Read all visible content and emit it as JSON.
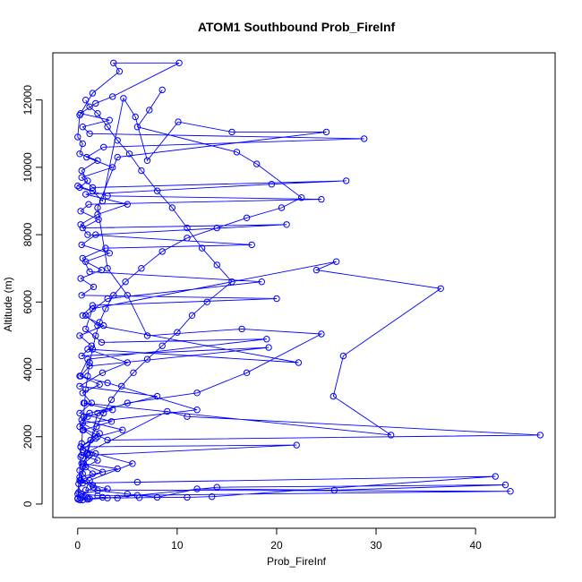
{
  "chart_data": {
    "type": "line",
    "title": "ATOM1 Southbound Prob_FireInf",
    "xlabel": "Prob_FireInf",
    "ylabel": "Altitude (m)",
    "xlim": [
      -2.5,
      48.0
    ],
    "ylim": [
      -400,
      13400
    ],
    "x_ticks": [
      0,
      10,
      20,
      30,
      40
    ],
    "y_ticks": [
      0,
      2000,
      4000,
      6000,
      8000,
      10000,
      12000
    ],
    "grid": false,
    "legend": "none",
    "point_style": "open-circle",
    "series_color": "#0000ff",
    "series": [
      {
        "points": [
          [
            0.0,
            150
          ],
          [
            0.3,
            180
          ],
          [
            1.2,
            160
          ],
          [
            2.5,
            200
          ],
          [
            4.0,
            180
          ],
          [
            6.2,
            190
          ],
          [
            11.0,
            200
          ],
          [
            13.5,
            220
          ],
          [
            42.0,
            820
          ],
          [
            6.0,
            650
          ],
          [
            0.5,
            620
          ],
          [
            1.5,
            900
          ],
          [
            0.8,
            1100
          ],
          [
            2.0,
            1300
          ],
          [
            0.4,
            1450
          ],
          [
            9.0,
            2750
          ],
          [
            11.0,
            2600
          ],
          [
            46.5,
            2050
          ],
          [
            3.0,
            1900
          ],
          [
            0.2,
            2300
          ],
          [
            1.0,
            2600
          ],
          [
            3.5,
            2800
          ],
          [
            0.6,
            3000
          ],
          [
            31.5,
            2050
          ],
          [
            25.7,
            3200
          ],
          [
            26.7,
            4400
          ],
          [
            36.5,
            6400
          ],
          [
            24.0,
            6950
          ],
          [
            26.0,
            7200
          ],
          [
            1.5,
            5800
          ],
          [
            0.8,
            5200
          ],
          [
            2.4,
            4800
          ],
          [
            19.0,
            4900
          ],
          [
            1.0,
            4300
          ],
          [
            0.2,
            3800
          ],
          [
            3.0,
            3600
          ],
          [
            12.0,
            2800
          ],
          [
            0.5,
            2400
          ],
          [
            2.2,
            2100
          ],
          [
            0.3,
            1700
          ],
          [
            1.8,
            1500
          ],
          [
            0.6,
            1200
          ],
          [
            4.0,
            1050
          ],
          [
            0.2,
            800
          ],
          [
            1.5,
            560
          ],
          [
            3.0,
            450
          ],
          [
            0.4,
            300
          ],
          [
            2.0,
            250
          ],
          [
            43.5,
            380
          ],
          [
            0.8,
            420
          ],
          [
            1.2,
            700
          ],
          [
            5.5,
            1200
          ],
          [
            0.5,
            1600
          ],
          [
            2.0,
            2000
          ],
          [
            4.5,
            2200
          ],
          [
            0.4,
            2500
          ],
          [
            1.2,
            2700
          ],
          [
            8.0,
            3200
          ],
          [
            0.2,
            3500
          ],
          [
            2.5,
            3900
          ],
          [
            5.0,
            4200
          ],
          [
            1.0,
            4600
          ],
          [
            22.2,
            4200
          ],
          [
            2.0,
            5300
          ],
          [
            0.8,
            5600
          ],
          [
            3.0,
            6100
          ],
          [
            18.5,
            6600
          ],
          [
            1.2,
            6900
          ],
          [
            0.5,
            7300
          ],
          [
            2.8,
            7600
          ],
          [
            17.5,
            7700
          ],
          [
            1.0,
            8000
          ],
          [
            0.3,
            8300
          ],
          [
            2.0,
            8600
          ],
          [
            5.0,
            8900
          ],
          [
            0.8,
            9200
          ],
          [
            19.5,
            9500
          ],
          [
            27.0,
            9600
          ],
          [
            1.5,
            9400
          ],
          [
            0.4,
            9700
          ],
          [
            3.5,
            10000
          ],
          [
            0.9,
            10300
          ],
          [
            2.6,
            10600
          ],
          [
            28.8,
            10850
          ],
          [
            1.2,
            11000
          ],
          [
            0.5,
            11200
          ],
          [
            3.2,
            11400
          ],
          [
            0.3,
            11600
          ],
          [
            1.8,
            11900
          ],
          [
            3.5,
            12100
          ],
          [
            10.2,
            13100
          ],
          [
            3.6,
            13100
          ],
          [
            4.2,
            12850
          ],
          [
            1.5,
            12200
          ],
          [
            0.2,
            11550
          ],
          [
            0.0,
            10900
          ],
          [
            0.5,
            10700
          ],
          [
            0.2,
            10400
          ],
          [
            2.0,
            10200
          ],
          [
            0.4,
            9900
          ],
          [
            1.0,
            9600
          ],
          [
            0.2,
            9400
          ],
          [
            3.0,
            9150
          ],
          [
            24.5,
            9050
          ],
          [
            1.1,
            8900
          ],
          [
            0.3,
            8700
          ],
          [
            2.1,
            8450
          ],
          [
            0.5,
            8200
          ],
          [
            21.0,
            8300
          ],
          [
            1.8,
            8000
          ],
          [
            0.4,
            7700
          ],
          [
            3.2,
            7450
          ],
          [
            0.8,
            7200
          ],
          [
            2.4,
            6950
          ],
          [
            0.3,
            6700
          ],
          [
            1.6,
            6450
          ],
          [
            0.4,
            6200
          ],
          [
            20.0,
            6100
          ],
          [
            1.5,
            5900
          ],
          [
            0.5,
            5600
          ],
          [
            2.6,
            5300
          ],
          [
            0.2,
            5000
          ],
          [
            1.4,
            4700
          ],
          [
            0.4,
            4400
          ],
          [
            19.2,
            4650
          ],
          [
            1.2,
            4100
          ],
          [
            0.3,
            3800
          ],
          [
            2.2,
            3550
          ],
          [
            0.5,
            3300
          ],
          [
            1.4,
            3000
          ],
          [
            0.2,
            2700
          ],
          [
            3.4,
            2450
          ],
          [
            0.6,
            2200
          ],
          [
            1.8,
            1950
          ],
          [
            0.3,
            1700
          ],
          [
            22.0,
            1750
          ],
          [
            1.1,
            1450
          ],
          [
            0.4,
            1200
          ],
          [
            2.5,
            950
          ],
          [
            0.2,
            700
          ],
          [
            1.6,
            500
          ],
          [
            0.4,
            300
          ],
          [
            1.0,
            180
          ],
          [
            0.2,
            120
          ]
        ]
      },
      {
        "points": [
          [
            0.0,
            9450
          ],
          [
            1.5,
            9300
          ],
          [
            2.5,
            9000
          ],
          [
            4.6,
            12050
          ],
          [
            5.8,
            11500
          ],
          [
            7.0,
            10200
          ],
          [
            10.1,
            11350
          ],
          [
            15.5,
            11050
          ],
          [
            25.0,
            11050
          ],
          [
            4.0,
            10300
          ],
          [
            2.0,
            8800
          ],
          [
            3.0,
            7000
          ],
          [
            5.0,
            6200
          ],
          [
            7.0,
            5000
          ],
          [
            16.5,
            5200
          ],
          [
            24.5,
            5050
          ],
          [
            17.0,
            3900
          ],
          [
            12.0,
            3300
          ],
          [
            5.0,
            3000
          ],
          [
            2.0,
            2700
          ],
          [
            1.0,
            1500
          ],
          [
            0.5,
            900
          ],
          [
            2.0,
            400
          ],
          [
            5.0,
            300
          ],
          [
            8.0,
            200
          ],
          [
            12.0,
            450
          ],
          [
            25.8,
            410
          ],
          [
            43.0,
            570
          ],
          [
            14.0,
            500
          ],
          [
            6.0,
            260
          ],
          [
            3.0,
            180
          ],
          [
            1.0,
            140
          ],
          [
            0.5,
            120
          ]
        ]
      },
      {
        "points": [
          [
            0.8,
            12000
          ],
          [
            1.2,
            11800
          ],
          [
            2.0,
            11600
          ],
          [
            3.0,
            11200
          ],
          [
            4.0,
            10800
          ],
          [
            5.2,
            10400
          ],
          [
            6.4,
            9900
          ],
          [
            8.0,
            9300
          ],
          [
            9.5,
            8800
          ],
          [
            11.0,
            8200
          ],
          [
            12.5,
            7600
          ],
          [
            14.0,
            7100
          ],
          [
            15.5,
            6600
          ],
          [
            13.0,
            6000
          ],
          [
            11.5,
            5600
          ],
          [
            10.0,
            5100
          ],
          [
            8.5,
            4700
          ],
          [
            7.0,
            4300
          ],
          [
            5.6,
            3900
          ],
          [
            4.4,
            3500
          ],
          [
            3.4,
            3100
          ],
          [
            2.6,
            2700
          ],
          [
            1.9,
            2300
          ],
          [
            1.3,
            1900
          ],
          [
            0.9,
            1500
          ],
          [
            0.5,
            1100
          ],
          [
            0.3,
            700
          ],
          [
            0.1,
            350
          ],
          [
            0.0,
            170
          ]
        ]
      },
      {
        "points": [
          [
            8.5,
            12300
          ],
          [
            7.2,
            11700
          ],
          [
            6.0,
            11200
          ],
          [
            16.0,
            10450
          ],
          [
            18.0,
            10100
          ],
          [
            22.5,
            9100
          ],
          [
            20.5,
            8800
          ],
          [
            17.0,
            8500
          ],
          [
            14.0,
            8200
          ],
          [
            11.0,
            7900
          ],
          [
            8.5,
            7500
          ],
          [
            6.4,
            7000
          ],
          [
            4.8,
            6600
          ],
          [
            3.6,
            6200
          ],
          [
            2.8,
            5800
          ],
          [
            2.2,
            5400
          ],
          [
            1.8,
            5000
          ],
          [
            1.5,
            4600
          ],
          [
            1.2,
            4200
          ],
          [
            1.0,
            3800
          ],
          [
            0.8,
            3400
          ],
          [
            0.7,
            3000
          ],
          [
            0.6,
            2600
          ],
          [
            0.5,
            2200
          ],
          [
            0.4,
            1800
          ],
          [
            0.3,
            1400
          ],
          [
            0.2,
            1000
          ],
          [
            0.1,
            600
          ],
          [
            0.0,
            300
          ]
        ]
      }
    ]
  }
}
